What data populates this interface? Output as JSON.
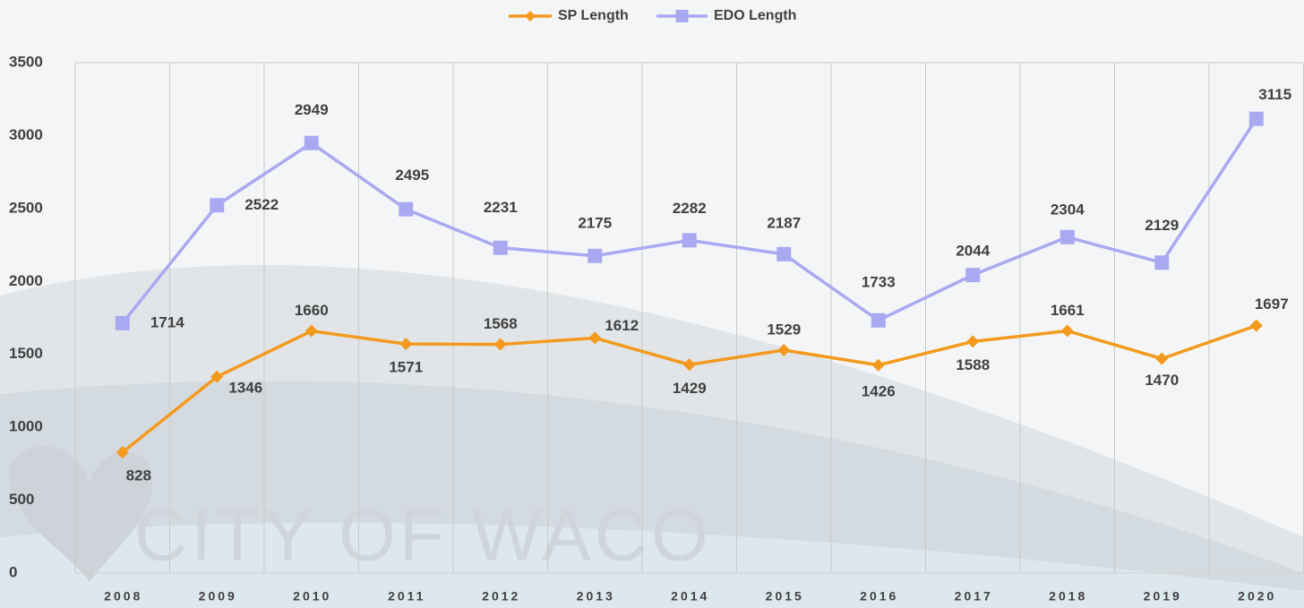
{
  "chart_data": {
    "type": "line",
    "watermark": "CITY OF WACO",
    "categories": [
      "2008",
      "2009",
      "2010",
      "2011",
      "2012",
      "2013",
      "2014",
      "2015",
      "2016",
      "2017",
      "2018",
      "2019",
      "2020"
    ],
    "series": [
      {
        "name": "SP Length",
        "color": "#f39a1e",
        "marker": "diamond",
        "values": [
          828,
          1346,
          1660,
          1571,
          1568,
          1612,
          1429,
          1529,
          1426,
          1588,
          1661,
          1470,
          1697
        ]
      },
      {
        "name": "EDO Length",
        "color": "#a9a9f2",
        "marker": "square",
        "values": [
          1714,
          2522,
          2949,
          2495,
          2231,
          2175,
          2282,
          2187,
          1733,
          2044,
          2304,
          2129,
          3115
        ]
      }
    ],
    "ylim": [
      0,
      3500
    ],
    "yticks": [
      0,
      500,
      1000,
      1500,
      2000,
      2500,
      3000,
      3500
    ],
    "grid": true,
    "legend": "top"
  }
}
